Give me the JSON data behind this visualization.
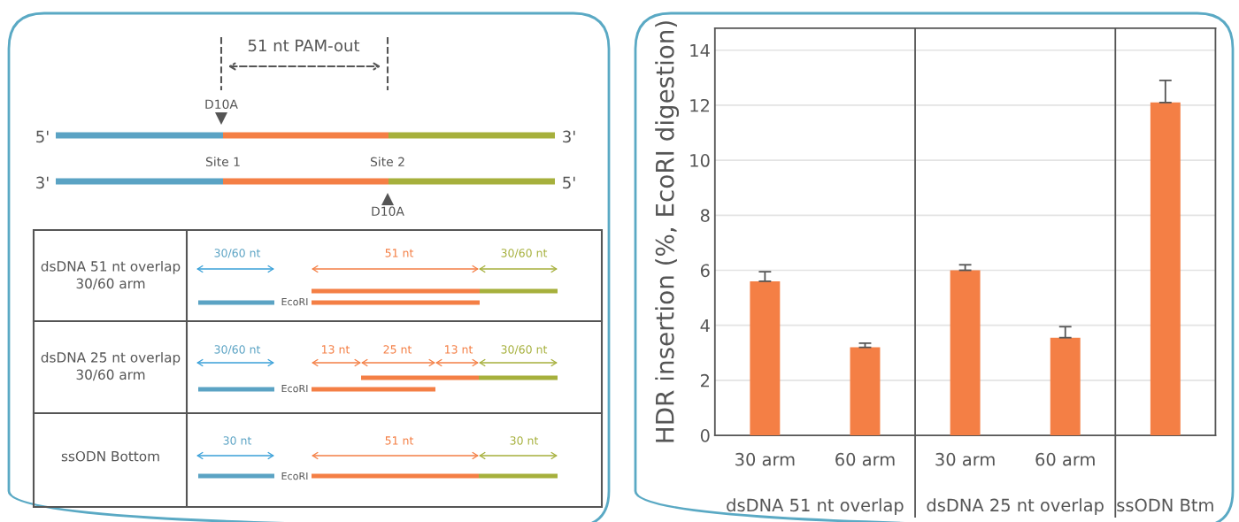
{
  "chart_data": [
    {
      "type": "other",
      "annotations": [
        "51 nt PAM-out",
        "D10A",
        "5'",
        "3'",
        "Site 1",
        "Site 2",
        "3'",
        "5'",
        "D10A",
        "dsDNA 51 nt overlap\n30/60 arm",
        "30/60 nt",
        "51 nt",
        "30/60 nt",
        "EcoRI",
        "dsDNA 25 nt overlap\n30/60 arm",
        "30/60 nt",
        "13 nt",
        "25 nt",
        "13 nt",
        "30/60 nt",
        "EcoRI",
        "ssODN Bottom",
        "30 nt",
        "51 nt",
        "30 nt",
        "EcoRI"
      ]
    },
    {
      "type": "bar",
      "ylabel": "HDR insertion (%, EcoRI digestion)",
      "categories": [
        "30 arm",
        "60 arm",
        "30 arm",
        "60 arm",
        null
      ],
      "values": [
        5.6,
        3.2,
        6.0,
        3.55,
        12.1
      ],
      "color": "#f47f45",
      "errors": [
        [
          5.6,
          5.95
        ],
        [
          3.2,
          3.35
        ],
        [
          6.0,
          6.2
        ],
        [
          3.55,
          3.95
        ],
        [
          12.1,
          12.9
        ]
      ],
      "annotations": [
        "dsDNA 51 nt overlap",
        "dsDNA 25 nt overlap",
        "ssODN Btm"
      ],
      "ylim": [
        0,
        14.8
      ],
      "yticks": [
        0,
        2,
        4,
        6,
        8,
        10,
        12,
        14
      ],
      "grid": "y"
    }
  ]
}
